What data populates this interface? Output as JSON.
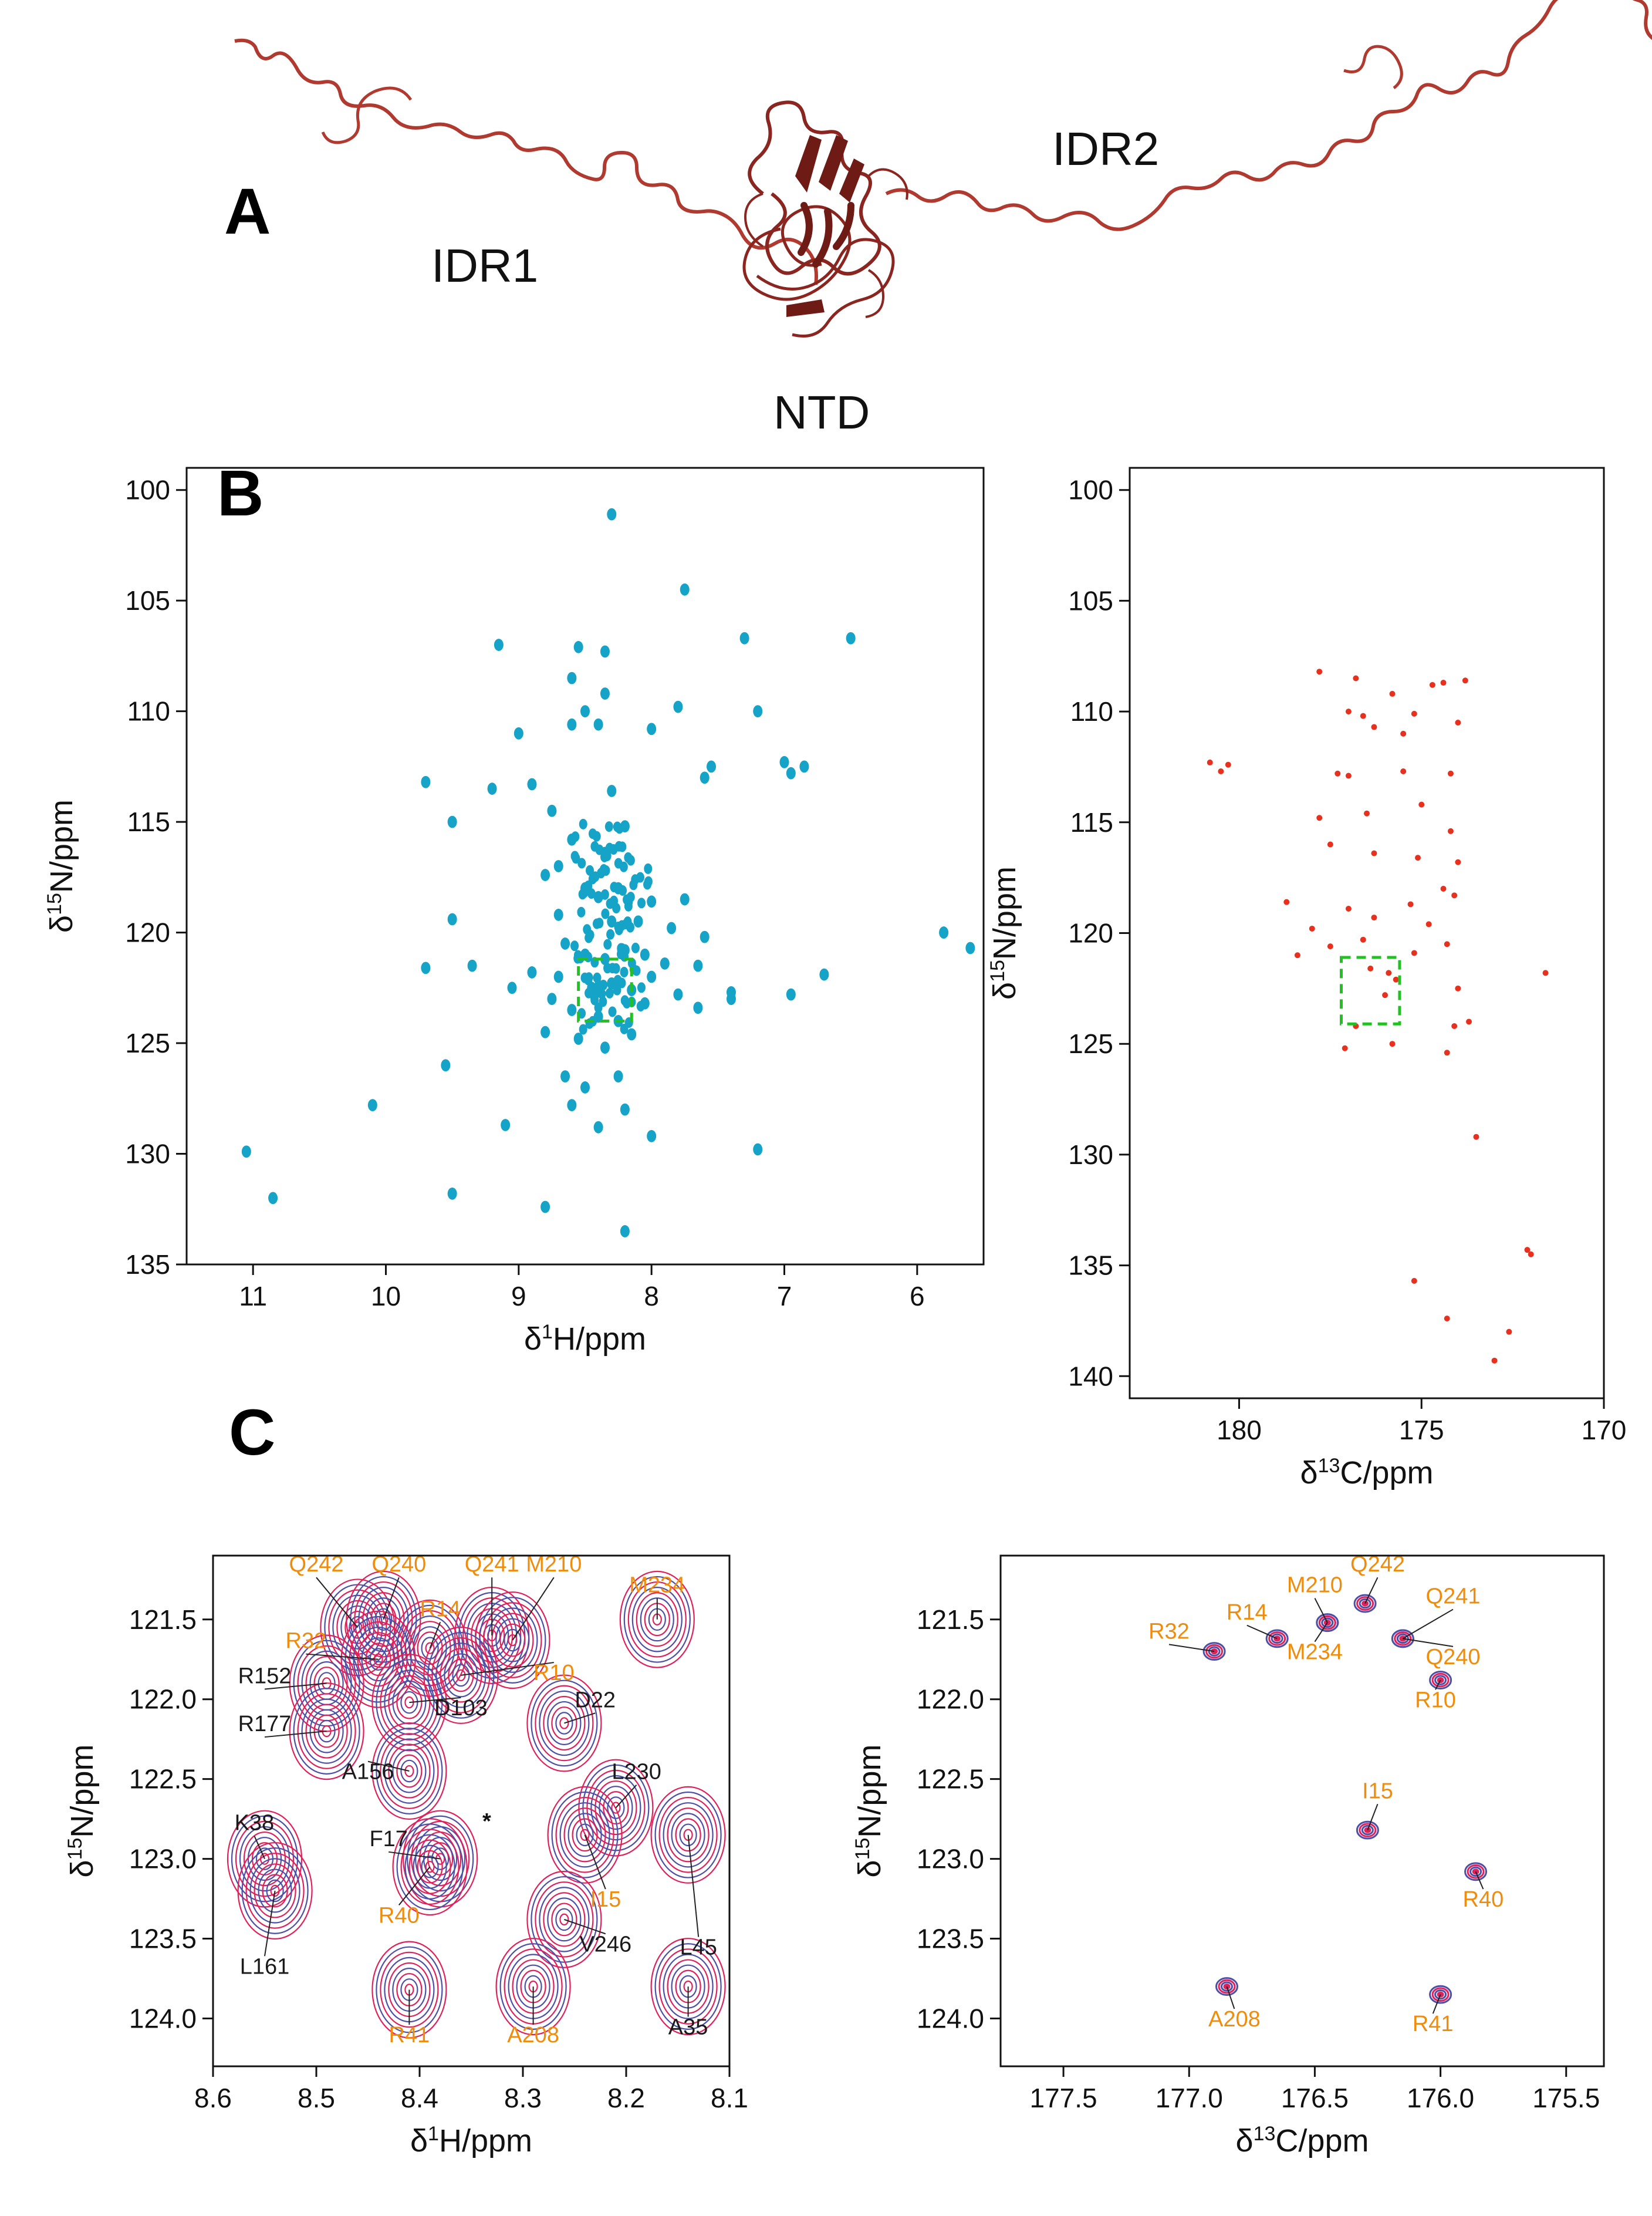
{
  "figure": {
    "panels": {
      "A": "A",
      "B": "B",
      "C": "C"
    },
    "structure_labels": {
      "idr1": "IDR1",
      "idr2": "IDR2",
      "ntd": "NTD"
    },
    "colors": {
      "protein": "#b03a30",
      "protein_dark": "#6e1b16",
      "hsqc": "#15a3c8",
      "hnco": "#e8301e",
      "zoom_box": "#23c023",
      "contour_red": "#e0205a",
      "contour_blue": "#4c4fa8",
      "orange_label": "#f08c0c",
      "black_label": "#1a1a1a"
    }
  },
  "chart_data": [
    {
      "id": "B-left",
      "type": "scatter",
      "title": "",
      "xlabel": "δ¹H/ppm",
      "ylabel": "δ¹⁵N/ppm",
      "xlim": [
        11.5,
        5.5
      ],
      "ylim": [
        99,
        135
      ],
      "xticks": [
        11,
        10,
        9,
        8,
        7,
        6
      ],
      "yticks": [
        100,
        105,
        110,
        115,
        120,
        125,
        130,
        135
      ],
      "points": [
        [
          8.3,
          101.1
        ],
        [
          7.75,
          104.5
        ],
        [
          7.3,
          106.7
        ],
        [
          6.5,
          106.7
        ],
        [
          9.15,
          107.0
        ],
        [
          8.55,
          107.1
        ],
        [
          8.35,
          107.3
        ],
        [
          8.6,
          108.5
        ],
        [
          8.35,
          109.2
        ],
        [
          8.5,
          110.0
        ],
        [
          8.6,
          110.6
        ],
        [
          8.4,
          110.6
        ],
        [
          9.0,
          111.0
        ],
        [
          8.0,
          110.8
        ],
        [
          7.8,
          109.8
        ],
        [
          7.2,
          110.0
        ],
        [
          7.55,
          112.5
        ],
        [
          7.6,
          113.0
        ],
        [
          7.0,
          112.3
        ],
        [
          6.85,
          112.5
        ],
        [
          6.95,
          112.8
        ],
        [
          9.7,
          113.2
        ],
        [
          9.2,
          113.5
        ],
        [
          8.9,
          113.3
        ],
        [
          8.3,
          113.6
        ],
        [
          9.5,
          115.0
        ],
        [
          8.75,
          114.5
        ],
        [
          8.6,
          115.8
        ],
        [
          8.2,
          115.2
        ],
        [
          8.35,
          116.4
        ],
        [
          8.7,
          117.0
        ],
        [
          8.8,
          117.4
        ],
        [
          8.5,
          118.0
        ],
        [
          8.4,
          118.4
        ],
        [
          8.25,
          118.0
        ],
        [
          8.0,
          118.6
        ],
        [
          7.75,
          118.5
        ],
        [
          9.5,
          119.4
        ],
        [
          8.7,
          119.2
        ],
        [
          8.3,
          119.5
        ],
        [
          8.1,
          119.5
        ],
        [
          7.85,
          119.8
        ],
        [
          7.6,
          120.2
        ],
        [
          9.7,
          121.6
        ],
        [
          9.35,
          121.5
        ],
        [
          8.65,
          120.5
        ],
        [
          8.5,
          121.0
        ],
        [
          8.35,
          121.2
        ],
        [
          8.2,
          120.8
        ],
        [
          8.05,
          121.0
        ],
        [
          7.9,
          121.4
        ],
        [
          7.65,
          121.5
        ],
        [
          8.9,
          121.8
        ],
        [
          8.7,
          122.0
        ],
        [
          8.45,
          122.5
        ],
        [
          8.3,
          122.3
        ],
        [
          8.15,
          122.6
        ],
        [
          8.0,
          122.0
        ],
        [
          7.8,
          122.8
        ],
        [
          7.4,
          122.7
        ],
        [
          6.95,
          122.8
        ],
        [
          6.7,
          121.9
        ],
        [
          9.05,
          122.5
        ],
        [
          8.75,
          123.0
        ],
        [
          8.6,
          123.5
        ],
        [
          8.4,
          123.8
        ],
        [
          8.25,
          124.0
        ],
        [
          8.05,
          123.2
        ],
        [
          7.65,
          123.4
        ],
        [
          7.4,
          123.0
        ],
        [
          8.8,
          124.5
        ],
        [
          8.55,
          124.8
        ],
        [
          8.35,
          125.2
        ],
        [
          8.15,
          124.6
        ],
        [
          9.55,
          126.0
        ],
        [
          8.65,
          126.5
        ],
        [
          8.5,
          127.0
        ],
        [
          8.25,
          126.5
        ],
        [
          10.1,
          127.8
        ],
        [
          8.6,
          127.8
        ],
        [
          8.2,
          128.0
        ],
        [
          9.1,
          128.7
        ],
        [
          8.4,
          128.8
        ],
        [
          8.0,
          129.2
        ],
        [
          7.2,
          129.8
        ],
        [
          11.05,
          129.9
        ],
        [
          10.85,
          132.0
        ],
        [
          9.5,
          131.8
        ],
        [
          8.8,
          132.4
        ],
        [
          8.2,
          133.5
        ],
        [
          5.8,
          120.0
        ],
        [
          5.6,
          120.7
        ]
      ],
      "zoom_box": {
        "x": [
          8.55,
          8.15
        ],
        "y": [
          121.2,
          124.0
        ]
      }
    },
    {
      "id": "B-right",
      "type": "scatter",
      "title": "",
      "xlabel": "δ¹³C/ppm",
      "ylabel": "δ¹⁵N/ppm",
      "xlim": [
        183,
        170
      ],
      "ylim": [
        99,
        141
      ],
      "xticks": [
        180,
        175,
        170
      ],
      "yticks": [
        100,
        105,
        110,
        115,
        120,
        125,
        130,
        135,
        140
      ],
      "points": [
        [
          177.8,
          108.2
        ],
        [
          176.8,
          108.5
        ],
        [
          175.8,
          109.2
        ],
        [
          174.7,
          108.8
        ],
        [
          174.4,
          108.7
        ],
        [
          173.8,
          108.6
        ],
        [
          177.0,
          110.0
        ],
        [
          176.6,
          110.2
        ],
        [
          176.3,
          110.7
        ],
        [
          175.2,
          110.1
        ],
        [
          174.0,
          110.5
        ],
        [
          175.5,
          111.0
        ],
        [
          180.8,
          112.3
        ],
        [
          180.5,
          112.7
        ],
        [
          180.3,
          112.4
        ],
        [
          177.3,
          112.8
        ],
        [
          177.0,
          112.9
        ],
        [
          175.5,
          112.7
        ],
        [
          174.2,
          112.8
        ],
        [
          177.8,
          114.8
        ],
        [
          176.5,
          114.6
        ],
        [
          175.0,
          114.2
        ],
        [
          174.2,
          115.4
        ],
        [
          177.5,
          116.0
        ],
        [
          176.3,
          116.4
        ],
        [
          175.1,
          116.6
        ],
        [
          174.0,
          116.8
        ],
        [
          178.7,
          118.6
        ],
        [
          177.0,
          118.9
        ],
        [
          175.3,
          118.7
        ],
        [
          174.4,
          118.0
        ],
        [
          174.1,
          118.3
        ],
        [
          178.0,
          119.8
        ],
        [
          176.3,
          119.3
        ],
        [
          174.8,
          119.6
        ],
        [
          178.4,
          121.0
        ],
        [
          177.5,
          120.6
        ],
        [
          176.6,
          120.3
        ],
        [
          175.2,
          120.9
        ],
        [
          174.3,
          120.5
        ],
        [
          171.6,
          121.8
        ],
        [
          176.4,
          121.6
        ],
        [
          175.9,
          121.8
        ],
        [
          175.7,
          122.1
        ],
        [
          176.0,
          122.8
        ],
        [
          174.0,
          122.5
        ],
        [
          173.7,
          124.0
        ],
        [
          174.1,
          124.2
        ],
        [
          176.8,
          124.2
        ],
        [
          177.1,
          125.2
        ],
        [
          175.8,
          125.0
        ],
        [
          174.3,
          125.4
        ],
        [
          173.5,
          129.2
        ],
        [
          172.1,
          134.3
        ],
        [
          172.0,
          134.5
        ],
        [
          175.2,
          135.7
        ],
        [
          174.3,
          137.4
        ],
        [
          172.6,
          138.0
        ],
        [
          173.0,
          139.3
        ]
      ],
      "zoom_box": {
        "x": [
          177.2,
          175.6
        ],
        "y": [
          121.1,
          124.1
        ]
      }
    },
    {
      "id": "C-left",
      "type": "scatter",
      "title": "",
      "xlabel": "δ¹H/ppm",
      "ylabel": "δ¹⁵N/ppm",
      "xlim": [
        8.6,
        8.1
      ],
      "ylim": [
        121.1,
        124.3
      ],
      "xticks": [
        "8.6",
        "8.5",
        "8.4",
        "8.3",
        "8.2",
        "8.1"
      ],
      "yticks": [
        "121.5",
        "122.0",
        "122.5",
        "123.0",
        "123.5",
        "124.0"
      ],
      "peaks": [
        {
          "label": "Q242",
          "x": 8.46,
          "y": 121.55,
          "color": "orange",
          "lx": 8.5,
          "ly": 121.2
        },
        {
          "label": "Q240",
          "x": 8.435,
          "y": 121.5,
          "color": "orange",
          "lx": 8.42,
          "ly": 121.2
        },
        {
          "label": "R14",
          "x": 8.39,
          "y": 121.68,
          "color": "orange",
          "lx": 8.38,
          "ly": 121.48
        },
        {
          "label": "Q241",
          "x": 8.33,
          "y": 121.6,
          "color": "orange",
          "lx": 8.33,
          "ly": 121.2
        },
        {
          "label": "M210",
          "x": 8.31,
          "y": 121.63,
          "color": "orange",
          "lx": 8.27,
          "ly": 121.2
        },
        {
          "label": "M234",
          "x": 8.17,
          "y": 121.5,
          "color": "orange",
          "lx": 8.17,
          "ly": 121.33
        },
        {
          "label": "R32",
          "x": 8.44,
          "y": 121.75,
          "color": "orange",
          "lx": 8.51,
          "ly": 121.68
        },
        {
          "label": "R10",
          "x": 8.36,
          "y": 121.85,
          "color": "orange",
          "lx": 8.27,
          "ly": 121.88
        },
        {
          "label": "R152",
          "x": 8.49,
          "y": 121.9,
          "color": "black",
          "lx": 8.55,
          "ly": 121.9
        },
        {
          "label": "D103",
          "x": 8.41,
          "y": 122.02,
          "color": "black",
          "lx": 8.36,
          "ly": 122.1
        },
        {
          "label": "D22",
          "x": 8.26,
          "y": 122.15,
          "color": "black",
          "lx": 8.23,
          "ly": 122.05
        },
        {
          "label": "R177",
          "x": 8.49,
          "y": 122.2,
          "color": "black",
          "lx": 8.55,
          "ly": 122.2
        },
        {
          "label": "A156",
          "x": 8.41,
          "y": 122.45,
          "color": "black",
          "lx": 8.45,
          "ly": 122.5
        },
        {
          "label": "L230",
          "x": 8.21,
          "y": 122.68,
          "color": "black",
          "lx": 8.19,
          "ly": 122.5
        },
        {
          "label": "K38",
          "x": 8.55,
          "y": 123.0,
          "color": "black",
          "lx": 8.56,
          "ly": 122.82
        },
        {
          "label": "F17",
          "x": 8.38,
          "y": 123.0,
          "color": "black",
          "lx": 8.43,
          "ly": 122.92
        },
        {
          "label": "I15",
          "x": 8.24,
          "y": 122.85,
          "color": "orange",
          "lx": 8.22,
          "ly": 123.3
        },
        {
          "label": "L45",
          "x": 8.14,
          "y": 122.85,
          "color": "black",
          "lx": 8.13,
          "ly": 123.6
        },
        {
          "label": "R40",
          "x": 8.39,
          "y": 123.05,
          "color": "orange",
          "lx": 8.42,
          "ly": 123.4
        },
        {
          "label": "V246",
          "x": 8.26,
          "y": 123.38,
          "color": "black",
          "lx": 8.22,
          "ly": 123.58
        },
        {
          "label": "L161",
          "x": 8.54,
          "y": 123.2,
          "color": "black",
          "lx": 8.55,
          "ly": 123.72
        },
        {
          "label": "R41",
          "x": 8.41,
          "y": 123.82,
          "color": "orange",
          "lx": 8.41,
          "ly": 124.15
        },
        {
          "label": "A208",
          "x": 8.29,
          "y": 123.8,
          "color": "orange",
          "lx": 8.29,
          "ly": 124.15
        },
        {
          "label": "A35",
          "x": 8.14,
          "y": 123.8,
          "color": "black",
          "lx": 8.14,
          "ly": 124.1
        }
      ],
      "annotations": [
        {
          "text": "*",
          "x": 8.335,
          "y": 122.7
        }
      ]
    },
    {
      "id": "C-right",
      "type": "scatter",
      "title": "",
      "xlabel": "δ¹³C/ppm",
      "ylabel": "δ¹⁵N/ppm",
      "xlim": [
        177.75,
        175.35
      ],
      "ylim": [
        121.1,
        124.3
      ],
      "xticks": [
        "177.5",
        "177.0",
        "176.5",
        "176.0",
        "175.5"
      ],
      "yticks": [
        "121.5",
        "122.0",
        "122.5",
        "123.0",
        "123.5",
        "124.0"
      ],
      "peaks": [
        {
          "label": "R32",
          "x": 176.9,
          "y": 121.7,
          "lx": 177.08,
          "ly": 121.62
        },
        {
          "label": "R14",
          "x": 176.65,
          "y": 121.62,
          "lx": 176.77,
          "ly": 121.5
        },
        {
          "label": "M210",
          "x": 176.45,
          "y": 121.52,
          "lx": 176.5,
          "ly": 121.33
        },
        {
          "label": "M234",
          "x": 176.45,
          "y": 121.52,
          "lx": 176.5,
          "ly": 121.75
        },
        {
          "label": "Q242",
          "x": 176.3,
          "y": 121.4,
          "lx": 176.25,
          "ly": 121.2
        },
        {
          "label": "Q241",
          "x": 176.15,
          "y": 121.62,
          "lx": 175.95,
          "ly": 121.4
        },
        {
          "label": "Q240",
          "x": 176.15,
          "y": 121.62,
          "lx": 175.95,
          "ly": 121.78
        },
        {
          "label": "R10",
          "x": 176.0,
          "y": 121.88,
          "lx": 176.02,
          "ly": 122.05
        },
        {
          "label": "I15",
          "x": 176.29,
          "y": 122.82,
          "lx": 176.25,
          "ly": 122.62
        },
        {
          "label": "R40",
          "x": 175.86,
          "y": 123.08,
          "lx": 175.83,
          "ly": 123.3
        },
        {
          "label": "A208",
          "x": 176.85,
          "y": 123.8,
          "lx": 176.82,
          "ly": 124.05
        },
        {
          "label": "R41",
          "x": 176.0,
          "y": 123.85,
          "lx": 176.03,
          "ly": 124.08
        }
      ]
    }
  ]
}
